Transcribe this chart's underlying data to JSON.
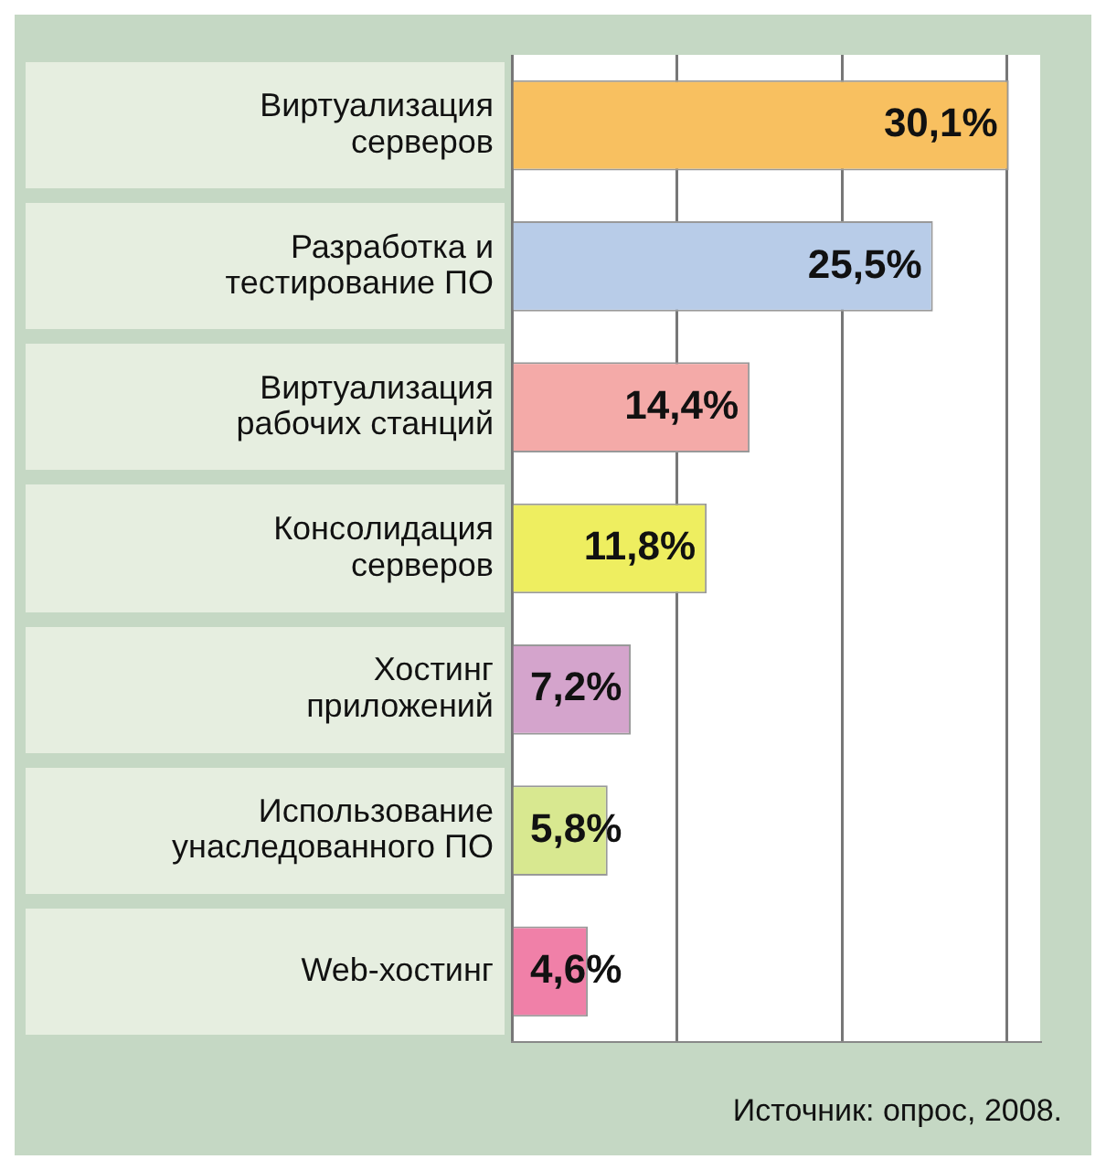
{
  "chart_data": {
    "type": "bar",
    "orientation": "horizontal",
    "categories": [
      "Виртуализация\nсерверов",
      "Разработка и\nтестирование ПО",
      "Виртуализация\nрабочих станций",
      "Консолидация\nсерверов",
      "Хостинг\nприложений",
      "Использование\nунаследованного ПО",
      "Web-хостинг"
    ],
    "values": [
      30.1,
      25.5,
      14.4,
      11.8,
      7.2,
      5.8,
      4.6
    ],
    "colors": [
      "#f8c060",
      "#b8cce8",
      "#f4aaa8",
      "#eeee60",
      "#d4a4cc",
      "#d8e890",
      "#f080a8"
    ],
    "value_labels": [
      "30,1%",
      "25,5%",
      "14,4%",
      "11,8%",
      "7,2%",
      "5,8%",
      "4,6%"
    ],
    "xlim": [
      0,
      32
    ],
    "xticks": [
      {
        "value": 0,
        "label": null
      },
      {
        "value": 10,
        "label": null
      },
      {
        "value": 20,
        "label": null
      },
      {
        "value": 30,
        "label": null
      }
    ],
    "grid": "x",
    "tick_labels": "y",
    "annotations": [
      "Источник: опрос, 2008."
    ]
  }
}
